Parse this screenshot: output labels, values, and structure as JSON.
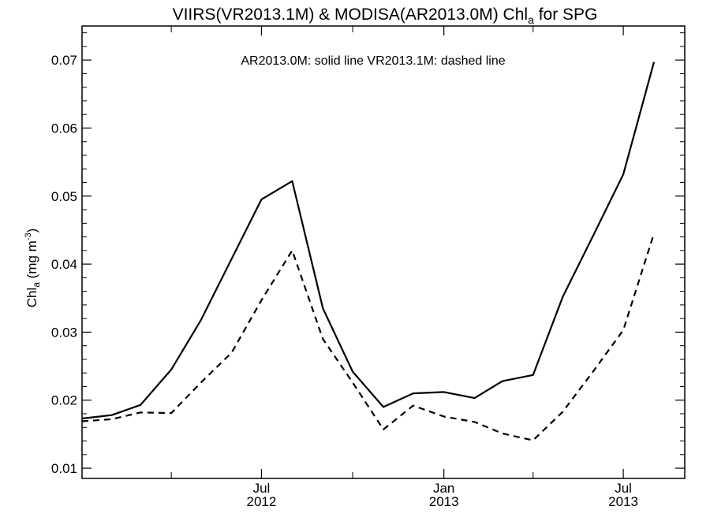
{
  "chart_data": {
    "type": "line",
    "title": {
      "prefix": "VIIRS(VR2013.1M) & MODISA(AR2013.0M)  Chl",
      "subscript": "a",
      "suffix": " for SPG"
    },
    "ylabel": {
      "prefix": "Chl",
      "subscript": "a",
      "units": " (mg m",
      "superscript": "-3",
      "close": ")"
    },
    "annotation": "AR2013.0M: solid line   VR2013.1M: dashed line",
    "xlim": [
      "2012-01-02",
      "2013-09-01"
    ],
    "ylim": [
      0.0085,
      0.075
    ],
    "y_ticks": [
      0.01,
      0.02,
      0.03,
      0.04,
      0.05,
      0.06,
      0.07
    ],
    "y_tick_labels": [
      "0.01",
      "0.02",
      "0.03",
      "0.04",
      "0.05",
      "0.06",
      "0.07"
    ],
    "x_major_ticks": [
      {
        "date": "2012-07-01",
        "month": "Jul",
        "year": "2012"
      },
      {
        "date": "2013-01-01",
        "month": "Jan",
        "year": "2013"
      },
      {
        "date": "2013-07-01",
        "month": "Jul",
        "year": "2013"
      }
    ],
    "x_minor_ticks": [
      "2012-04-01",
      "2012-10-01",
      "2013-04-01"
    ],
    "series": [
      {
        "line_style": "solid",
        "x": [
          "2012-01-01",
          "2012-02-01",
          "2012-03-01",
          "2012-04-01",
          "2012-05-01",
          "2012-06-01",
          "2012-07-01",
          "2012-08-01",
          "2012-09-01",
          "2012-10-01",
          "2012-11-01",
          "2012-12-01",
          "2013-01-01",
          "2013-02-01",
          "2013-03-01",
          "2013-04-01",
          "2013-05-01",
          "2013-06-01",
          "2013-07-01",
          "2013-08-01",
          "2013-09-01"
        ],
        "values": [
          0.0173,
          0.0178,
          0.0193,
          0.0245,
          0.0318,
          0.0408,
          0.0495,
          0.0522,
          0.0335,
          0.0242,
          0.019,
          0.021,
          0.0212,
          0.0203,
          0.0228,
          0.0237,
          0.0352,
          0.0443,
          0.0532,
          0.0697,
          null
        ]
      },
      {
        "line_style": "dashed",
        "x": [
          "2012-01-01",
          "2012-02-01",
          "2012-03-01",
          "2012-04-01",
          "2012-05-01",
          "2012-06-01",
          "2012-07-01",
          "2012-08-01",
          "2012-09-01",
          "2012-10-01",
          "2012-11-01",
          "2012-12-01",
          "2013-01-01",
          "2013-02-01",
          "2013-03-01",
          "2013-04-01",
          "2013-05-01",
          "2013-06-01",
          "2013-07-01",
          "2013-08-01",
          "2013-09-01"
        ],
        "values": [
          0.0169,
          0.0172,
          0.0182,
          0.0181,
          0.0226,
          0.027,
          0.0347,
          0.042,
          0.029,
          0.0226,
          0.0157,
          0.0192,
          0.0176,
          0.0168,
          0.0151,
          0.0141,
          0.0183,
          0.0243,
          0.0303,
          0.0445,
          null
        ]
      }
    ],
    "colors": {
      "line": "#000000",
      "background": "#ffffff"
    }
  }
}
